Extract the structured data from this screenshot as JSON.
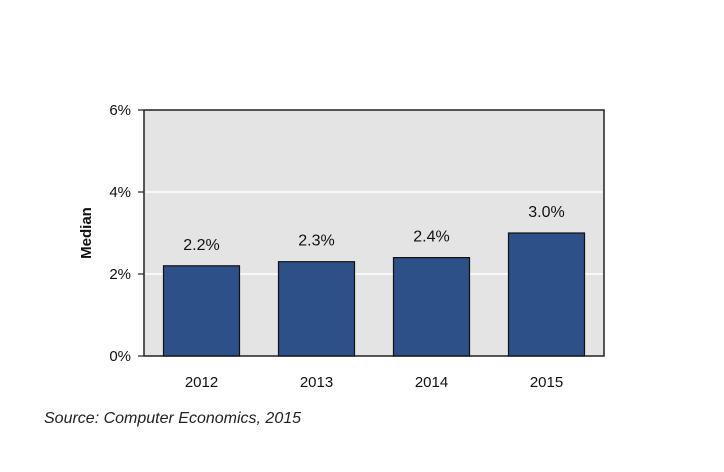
{
  "chart_data": {
    "type": "bar",
    "categories": [
      "2012",
      "2013",
      "2014",
      "2015"
    ],
    "values": [
      2.2,
      2.3,
      2.4,
      3.0
    ],
    "value_labels": [
      "2.2%",
      "2.3%",
      "2.4%",
      "3.0%"
    ],
    "ylabel": "Median",
    "ylim": [
      0,
      6
    ],
    "yticks": [
      0,
      2,
      4,
      6
    ],
    "ytick_labels": [
      "0%",
      "2%",
      "4%",
      "6%"
    ],
    "grid": true,
    "colors": {
      "bar": "#2e5088",
      "bar_edge": "#111111",
      "plot_background": "#e4e4e4",
      "grid": "#ffffff"
    }
  },
  "source": "Source: Computer Economics, 2015"
}
